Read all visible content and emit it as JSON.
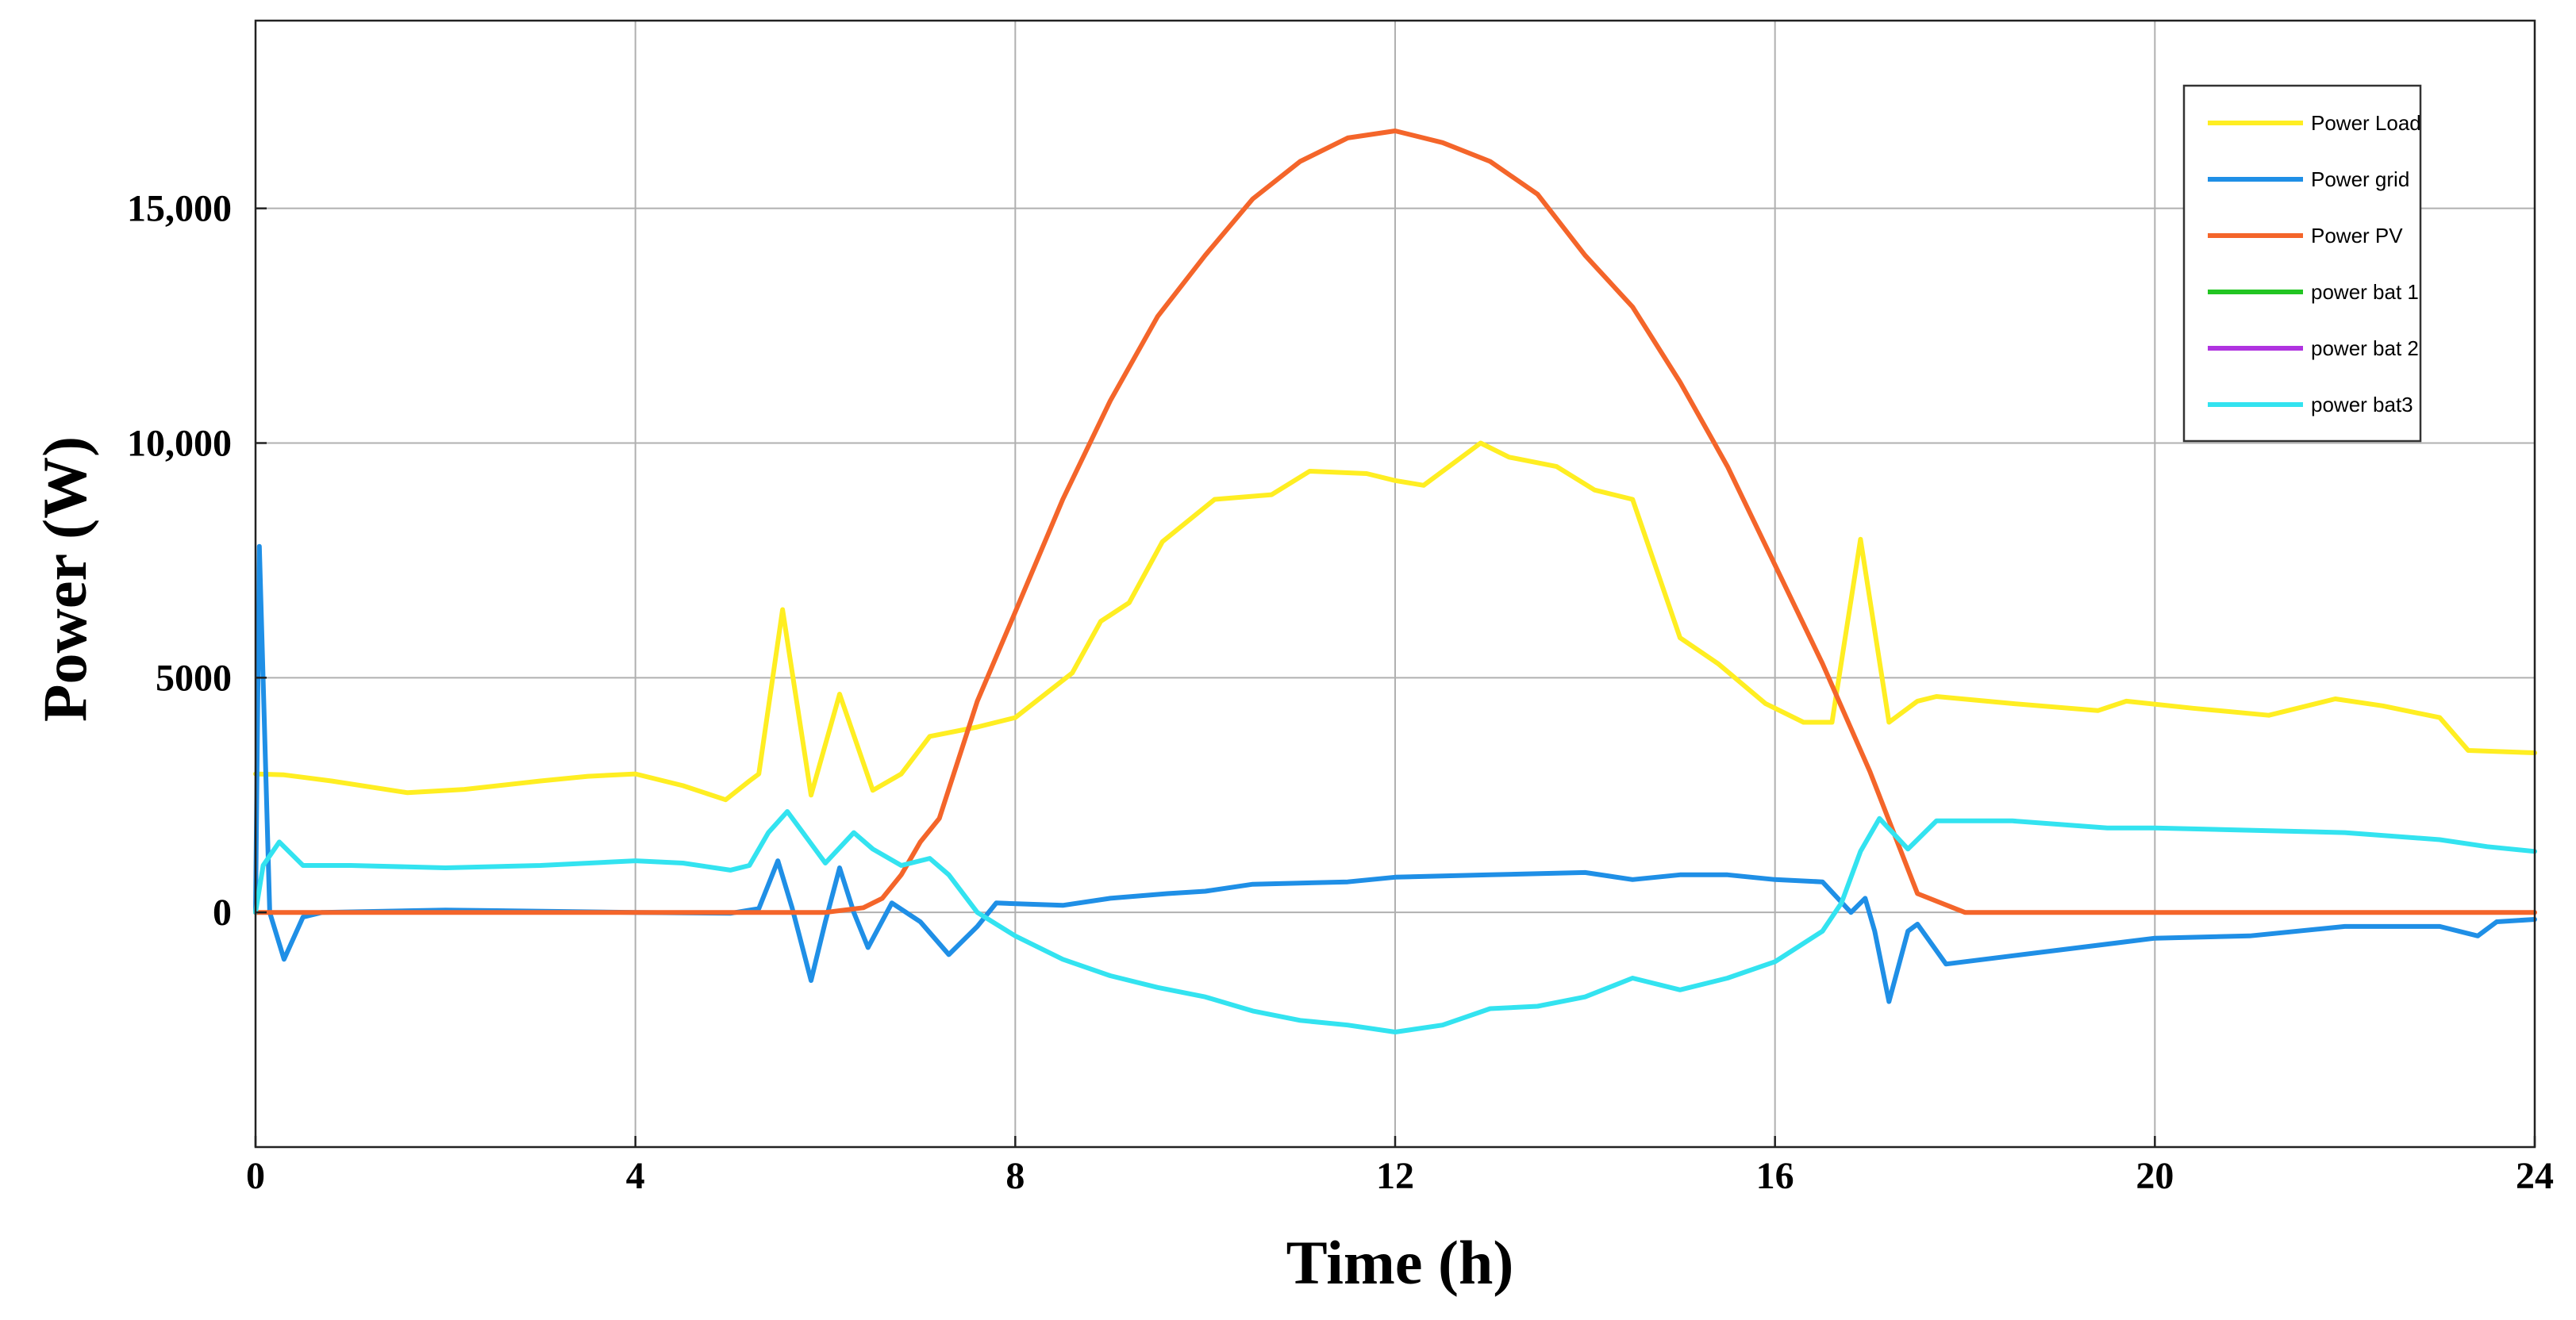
{
  "chart_data": {
    "type": "line",
    "title": "",
    "xlabel": "Time (h)",
    "ylabel": "Power (W)",
    "xlim": [
      0,
      24
    ],
    "ylim": [
      -5000,
      19000
    ],
    "grid": true,
    "legend_position": "top-right",
    "x_ticks": [
      0,
      4,
      8,
      12,
      16,
      20,
      24
    ],
    "x_tick_labels": [
      "0",
      "4",
      "8",
      "12",
      "16",
      "20",
      "24"
    ],
    "y_ticks": [
      0,
      5000,
      10000,
      15000
    ],
    "y_tick_labels": [
      "0",
      "5000",
      "10,000",
      "15,000"
    ],
    "series": [
      {
        "name": "Power Load",
        "color": "#ffee22",
        "points": [
          [
            0,
            2950
          ],
          [
            0.3,
            2930
          ],
          [
            0.8,
            2800
          ],
          [
            1.6,
            2550
          ],
          [
            2.2,
            2620
          ],
          [
            3,
            2800
          ],
          [
            3.5,
            2900
          ],
          [
            4,
            2950
          ],
          [
            4.5,
            2700
          ],
          [
            4.95,
            2400
          ],
          [
            5.2,
            2800
          ],
          [
            5.3,
            2950
          ],
          [
            5.55,
            6450
          ],
          [
            5.85,
            2500
          ],
          [
            6.15,
            4650
          ],
          [
            6.5,
            2600
          ],
          [
            6.8,
            2950
          ],
          [
            7.1,
            3750
          ],
          [
            7.6,
            3950
          ],
          [
            8,
            4150
          ],
          [
            8.6,
            5100
          ],
          [
            8.9,
            6200
          ],
          [
            9.2,
            6600
          ],
          [
            9.55,
            7900
          ],
          [
            10.1,
            8800
          ],
          [
            10.7,
            8900
          ],
          [
            11.1,
            9400
          ],
          [
            11.7,
            9350
          ],
          [
            12,
            9200
          ],
          [
            12.3,
            9100
          ],
          [
            12.9,
            10000
          ],
          [
            13.2,
            9700
          ],
          [
            13.7,
            9500
          ],
          [
            14.1,
            9000
          ],
          [
            14.5,
            8800
          ],
          [
            15,
            5850
          ],
          [
            15.4,
            5300
          ],
          [
            15.9,
            4450
          ],
          [
            16.3,
            4050
          ],
          [
            16.6,
            4050
          ],
          [
            16.9,
            7950
          ],
          [
            17.2,
            4050
          ],
          [
            17.5,
            4500
          ],
          [
            17.7,
            4600
          ],
          [
            18.5,
            4450
          ],
          [
            19.4,
            4300
          ],
          [
            19.7,
            4500
          ],
          [
            20.4,
            4350
          ],
          [
            21.2,
            4200
          ],
          [
            21.9,
            4550
          ],
          [
            22.4,
            4400
          ],
          [
            23,
            4150
          ],
          [
            23.3,
            3450
          ],
          [
            24,
            3400
          ]
        ]
      },
      {
        "name": "Power grid",
        "color": "#1f8fe6",
        "points": [
          [
            0,
            0
          ],
          [
            0.04,
            7800
          ],
          [
            0.15,
            0
          ],
          [
            0.3,
            -1000
          ],
          [
            0.5,
            -100
          ],
          [
            0.7,
            0
          ],
          [
            2,
            50
          ],
          [
            4,
            0
          ],
          [
            5,
            -20
          ],
          [
            5.3,
            80
          ],
          [
            5.5,
            1100
          ],
          [
            5.65,
            100
          ],
          [
            5.85,
            -1450
          ],
          [
            6,
            -200
          ],
          [
            6.15,
            950
          ],
          [
            6.3,
            0
          ],
          [
            6.45,
            -750
          ],
          [
            6.7,
            200
          ],
          [
            7,
            -200
          ],
          [
            7.3,
            -900
          ],
          [
            7.6,
            -300
          ],
          [
            7.8,
            200
          ],
          [
            8.5,
            150
          ],
          [
            9,
            300
          ],
          [
            9.6,
            400
          ],
          [
            10,
            450
          ],
          [
            10.5,
            600
          ],
          [
            11.5,
            650
          ],
          [
            12,
            750
          ],
          [
            13,
            800
          ],
          [
            14,
            850
          ],
          [
            14.5,
            700
          ],
          [
            15,
            800
          ],
          [
            15.5,
            800
          ],
          [
            16,
            700
          ],
          [
            16.5,
            650
          ],
          [
            16.8,
            0
          ],
          [
            16.95,
            300
          ],
          [
            17.05,
            -400
          ],
          [
            17.2,
            -1900
          ],
          [
            17.4,
            -400
          ],
          [
            17.5,
            -250
          ],
          [
            17.8,
            -1100
          ],
          [
            19,
            -800
          ],
          [
            20,
            -550
          ],
          [
            21,
            -500
          ],
          [
            22,
            -300
          ],
          [
            23,
            -300
          ],
          [
            23.4,
            -500
          ],
          [
            23.6,
            -200
          ],
          [
            24,
            -150
          ]
        ]
      },
      {
        "name": "Power PV",
        "color": "#f4652a",
        "points": [
          [
            0,
            0
          ],
          [
            6,
            0
          ],
          [
            6.4,
            100
          ],
          [
            6.6,
            300
          ],
          [
            6.8,
            800
          ],
          [
            7,
            1500
          ],
          [
            7.2,
            2000
          ],
          [
            7.6,
            4500
          ],
          [
            8,
            6400
          ],
          [
            8.5,
            8800
          ],
          [
            9,
            10900
          ],
          [
            9.5,
            12700
          ],
          [
            10,
            14000
          ],
          [
            10.5,
            15200
          ],
          [
            11,
            16000
          ],
          [
            11.5,
            16500
          ],
          [
            12,
            16650
          ],
          [
            12.5,
            16400
          ],
          [
            13,
            16000
          ],
          [
            13.5,
            15300
          ],
          [
            14,
            14000
          ],
          [
            14.5,
            12900
          ],
          [
            15,
            11300
          ],
          [
            15.5,
            9500
          ],
          [
            16,
            7400
          ],
          [
            16.5,
            5300
          ],
          [
            17,
            3000
          ],
          [
            17.5,
            400
          ],
          [
            18,
            0
          ],
          [
            24,
            0
          ]
        ]
      },
      {
        "name": "power bat 1",
        "color": "#22c522",
        "points": []
      },
      {
        "name": "power bat 2",
        "color": "#b033e0",
        "points": []
      },
      {
        "name": "power bat3",
        "color": "#33e3f0",
        "points": [
          [
            0,
            0
          ],
          [
            0.08,
            1000
          ],
          [
            0.25,
            1500
          ],
          [
            0.5,
            1000
          ],
          [
            1,
            1000
          ],
          [
            2,
            950
          ],
          [
            3,
            1000
          ],
          [
            4,
            1100
          ],
          [
            4.5,
            1050
          ],
          [
            5,
            900
          ],
          [
            5.2,
            1000
          ],
          [
            5.4,
            1700
          ],
          [
            5.6,
            2150
          ],
          [
            5.8,
            1600
          ],
          [
            6,
            1050
          ],
          [
            6.3,
            1700
          ],
          [
            6.5,
            1350
          ],
          [
            6.8,
            1000
          ],
          [
            7.1,
            1150
          ],
          [
            7.3,
            800
          ],
          [
            7.6,
            0
          ],
          [
            8,
            -500
          ],
          [
            8.5,
            -1000
          ],
          [
            9,
            -1350
          ],
          [
            9.5,
            -1600
          ],
          [
            10,
            -1800
          ],
          [
            10.5,
            -2100
          ],
          [
            11,
            -2300
          ],
          [
            11.5,
            -2400
          ],
          [
            12,
            -2550
          ],
          [
            12.5,
            -2400
          ],
          [
            13,
            -2050
          ],
          [
            13.5,
            -2000
          ],
          [
            14,
            -1800
          ],
          [
            14.5,
            -1400
          ],
          [
            15,
            -1650
          ],
          [
            15.5,
            -1400
          ],
          [
            16,
            -1050
          ],
          [
            16.5,
            -400
          ],
          [
            16.7,
            200
          ],
          [
            16.9,
            1300
          ],
          [
            17.1,
            2000
          ],
          [
            17.4,
            1350
          ],
          [
            17.7,
            1950
          ],
          [
            18.5,
            1950
          ],
          [
            19.5,
            1800
          ],
          [
            20,
            1800
          ],
          [
            21,
            1750
          ],
          [
            22,
            1700
          ],
          [
            23,
            1550
          ],
          [
            23.5,
            1400
          ],
          [
            24,
            1300
          ]
        ]
      }
    ]
  }
}
